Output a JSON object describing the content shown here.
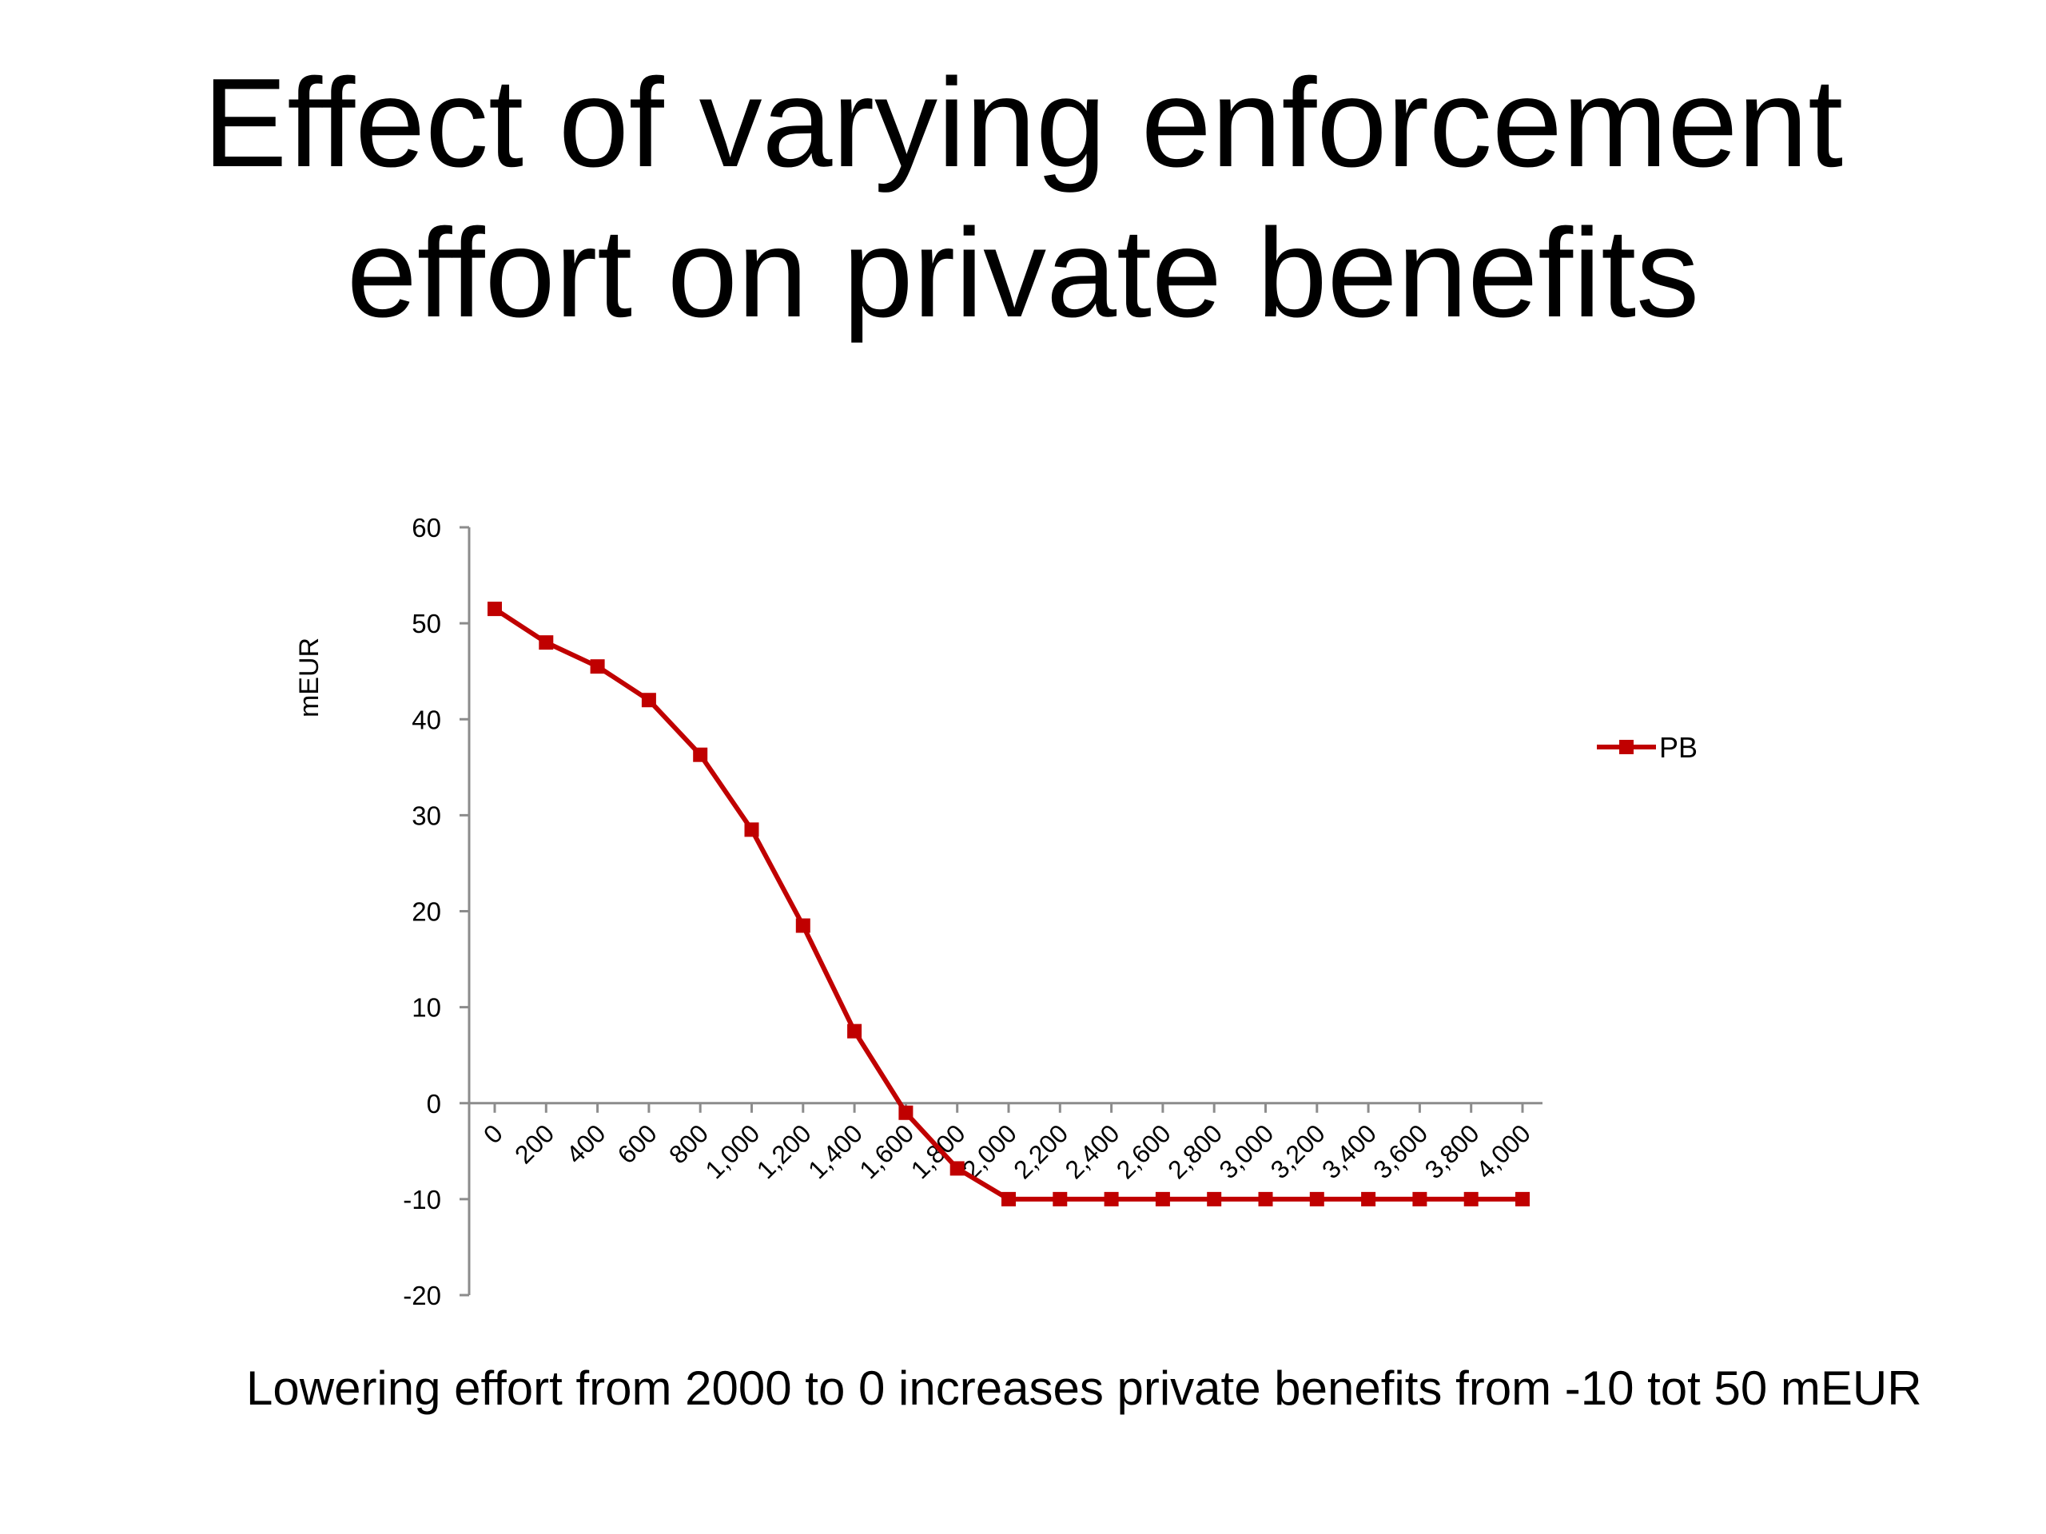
{
  "slide": {
    "title_line1": "Effect of varying enforcement",
    "title_line2": "effort on private benefits",
    "caption": "Lowering effort from 2000 to 0 increases private benefits from -10 tot 50 mEUR"
  },
  "chart_data": {
    "type": "line",
    "title": "",
    "xlabel": "",
    "ylabel": "mEUR",
    "categories": [
      "0",
      "200",
      "400",
      "600",
      "800",
      "1,000",
      "1,200",
      "1,400",
      "1,600",
      "1,800",
      "2,000",
      "2,200",
      "2,400",
      "2,600",
      "2,800",
      "3,000",
      "3,200",
      "3,400",
      "3,600",
      "3,800",
      "4,000"
    ],
    "series": [
      {
        "name": "PB",
        "color": "#c00000",
        "marker": "square",
        "values": [
          51.5,
          48,
          45.5,
          42,
          36.3,
          28.5,
          18.5,
          7.5,
          -1,
          -6.8,
          -10,
          -10,
          -10,
          -10,
          -10,
          -10,
          -10,
          -10,
          -10,
          -10,
          -10
        ]
      }
    ],
    "ylim": [
      -20,
      60
    ],
    "yticks": [
      "60",
      "50",
      "40",
      "30",
      "20",
      "10",
      "0",
      "-10",
      "-20"
    ],
    "ytick_values": [
      60,
      50,
      40,
      30,
      20,
      10,
      0,
      -10,
      -20
    ],
    "grid": false,
    "legend": "right"
  }
}
